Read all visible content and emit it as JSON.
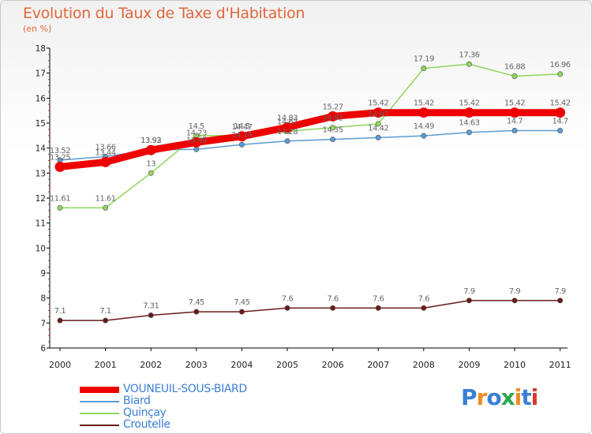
{
  "header": {
    "title": "Evolution du Taux de Taxe d'Habitation",
    "subtitle": "(en %)"
  },
  "chart_data": {
    "type": "line",
    "title": "Evolution du Taux de Taxe d'Habitation",
    "subtitle": "(en %)",
    "xlabel": "",
    "ylabel": "",
    "x": [
      "2000",
      "2001",
      "2002",
      "2003",
      "2004",
      "2005",
      "2006",
      "2007",
      "2008",
      "2009",
      "2010",
      "2011"
    ],
    "y_ticks": [
      "6",
      "7",
      "8",
      "9",
      "10",
      "11",
      "12",
      "13",
      "14",
      "15",
      "16",
      "17",
      "18"
    ],
    "ylim": [
      6,
      18
    ],
    "grid": false,
    "legend_position": "bottom-left",
    "series": [
      {
        "name": "VOUNEUIL-SOUS-BIARD",
        "color": "#ee0000",
        "values": [
          13.25,
          13.44,
          13.92,
          14.23,
          14.47,
          14.83,
          15.27,
          15.42,
          15.42,
          15.42,
          15.42,
          15.42
        ],
        "labels": [
          "13.25",
          "13.44",
          "13.92",
          "14.23",
          "14.47",
          "14.83",
          "15.27",
          "15.42",
          "15.42",
          "15.42",
          "15.42",
          "15.42"
        ]
      },
      {
        "name": "Biard",
        "color": "#5b9bd5",
        "values": [
          13.52,
          13.66,
          13.93,
          13.95,
          14.14,
          14.28,
          14.35,
          14.42,
          14.49,
          14.63,
          14.7,
          14.7
        ],
        "labels": [
          "13.52",
          "13.66",
          "13.93",
          "13.95",
          "14.14",
          "14.28",
          "14.35",
          "14.42",
          "14.49",
          "14.63",
          "14.7",
          "14.7"
        ]
      },
      {
        "name": "Quinçay",
        "color": "#8fd65a",
        "values": [
          11.61,
          11.61,
          13,
          14.5,
          14.5,
          14.67,
          14.82,
          14.97,
          17.19,
          17.36,
          16.88,
          16.96
        ],
        "labels": [
          "11.61",
          "11.61",
          "13",
          "14.5",
          "14.5",
          "14.67",
          "14.82",
          "14.97",
          "17.19",
          "17.36",
          "16.88",
          "16.96"
        ]
      },
      {
        "name": "Croutelle",
        "color": "#6b1a1a",
        "values": [
          7.1,
          7.1,
          7.31,
          7.45,
          7.45,
          7.6,
          7.6,
          7.6,
          7.6,
          7.9,
          7.9,
          7.9
        ],
        "labels": [
          "7.1",
          "7.1",
          "7.31",
          "7.45",
          "7.45",
          "7.6",
          "7.6",
          "7.6",
          "7.6",
          "7.9",
          "7.9",
          "7.9"
        ]
      }
    ]
  },
  "legend": [
    {
      "label": "VOUNEUIL-SOUS-BIARD",
      "color": "#ee0000",
      "thick": true
    },
    {
      "label": "Biard",
      "color": "#5b9bd5",
      "thick": false
    },
    {
      "label": "Quinçay",
      "color": "#8fd65a",
      "thick": false
    },
    {
      "label": "Croutelle",
      "color": "#6b1a1a",
      "thick": false
    }
  ],
  "brand": {
    "text": "Proxiti",
    "letter_colors": [
      "#3a7fd5",
      "#f08a24",
      "#3a7fd5",
      "#2fa84f",
      "#f08a24",
      "#3a7fd5",
      "#d83a2a"
    ]
  }
}
